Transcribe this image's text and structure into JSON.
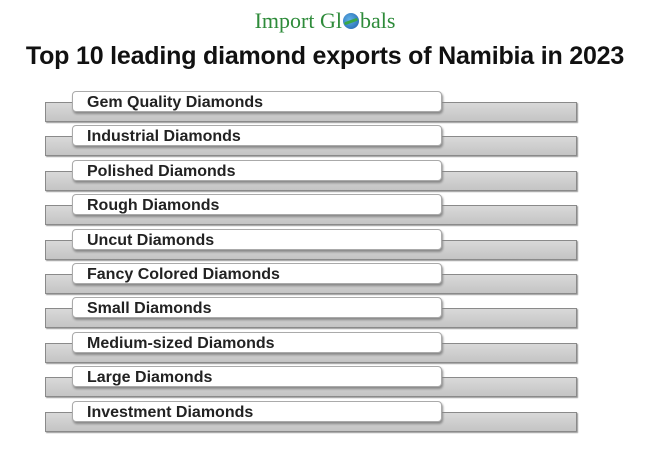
{
  "logo": {
    "text_before": "Import Gl",
    "text_after": "bals",
    "icon": "globe-icon"
  },
  "title": "Top 10 leading diamond exports of Namibia in 2023",
  "items": [
    {
      "label": "Gem Quality Diamonds"
    },
    {
      "label": "Industrial Diamonds"
    },
    {
      "label": "Polished Diamonds"
    },
    {
      "label": "Rough Diamonds"
    },
    {
      "label": "Uncut Diamonds"
    },
    {
      "label": "Fancy Colored Diamonds"
    },
    {
      "label": "Small Diamonds"
    },
    {
      "label": "Medium-sized Diamonds"
    },
    {
      "label": "Large Diamonds"
    },
    {
      "label": "Investment Diamonds"
    }
  ]
}
